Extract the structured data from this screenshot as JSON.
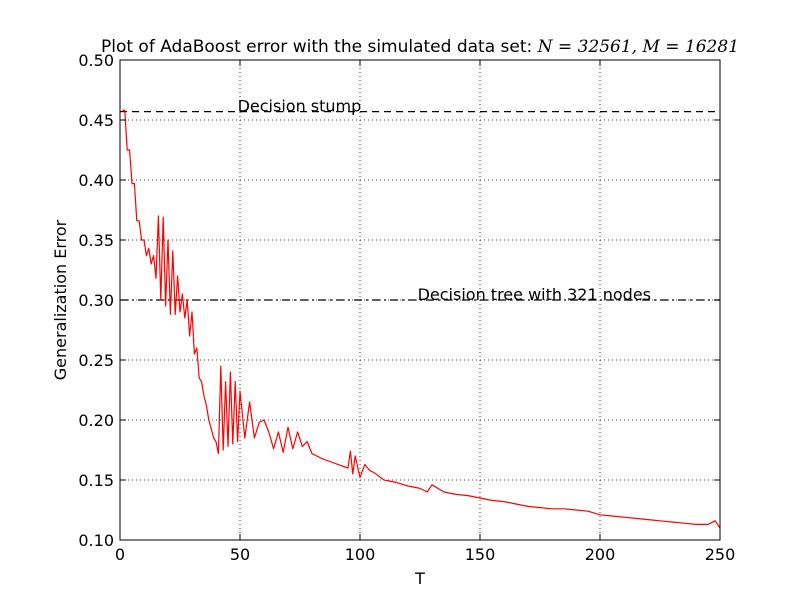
{
  "chart_data": {
    "type": "line",
    "title_prefix": "Plot of AdaBoost error with the simulated data set: ",
    "title_math": "N = 32561, M = 16281",
    "xlabel": "T",
    "ylabel": "Generalization Error",
    "xlim": [
      0,
      250
    ],
    "ylim": [
      0.1,
      0.5
    ],
    "xticks": [
      0,
      50,
      100,
      150,
      200,
      250
    ],
    "xtick_labels": [
      "0",
      "50",
      "100",
      "150",
      "200",
      "250"
    ],
    "yticks": [
      0.1,
      0.15,
      0.2,
      0.25,
      0.3,
      0.35,
      0.4,
      0.45,
      0.5
    ],
    "ytick_labels": [
      "0.10",
      "0.15",
      "0.20",
      "0.25",
      "0.30",
      "0.35",
      "0.40",
      "0.45",
      "0.50"
    ],
    "grid": true,
    "grid_style": "dotted",
    "series": [
      {
        "color": "#ff0000",
        "x": [
          1,
          2,
          3,
          4,
          5,
          6,
          7,
          8,
          9,
          10,
          11,
          12,
          13,
          14,
          15,
          16,
          17,
          18,
          19,
          20,
          21,
          22,
          23,
          24,
          25,
          26,
          27,
          28,
          29,
          30,
          31,
          32,
          33,
          34,
          35,
          36,
          37,
          38,
          39,
          40,
          41,
          42,
          43,
          44,
          45,
          46,
          47,
          48,
          49,
          50,
          52,
          54,
          56,
          58,
          60,
          62,
          64,
          66,
          68,
          70,
          72,
          74,
          76,
          78,
          80,
          84,
          88,
          92,
          95,
          96,
          97,
          98,
          100,
          102,
          104,
          106,
          110,
          115,
          120,
          125,
          128,
          130,
          135,
          140,
          145,
          150,
          155,
          160,
          165,
          170,
          175,
          180,
          185,
          190,
          195,
          200,
          205,
          210,
          215,
          220,
          225,
          230,
          235,
          240,
          245,
          248,
          250
        ],
        "y": [
          0.458,
          0.458,
          0.425,
          0.425,
          0.397,
          0.397,
          0.366,
          0.366,
          0.35,
          0.35,
          0.337,
          0.343,
          0.33,
          0.337,
          0.318,
          0.37,
          0.3,
          0.369,
          0.295,
          0.35,
          0.288,
          0.341,
          0.288,
          0.32,
          0.29,
          0.305,
          0.285,
          0.3,
          0.27,
          0.29,
          0.255,
          0.26,
          0.235,
          0.232,
          0.22,
          0.212,
          0.2,
          0.193,
          0.185,
          0.182,
          0.172,
          0.245,
          0.175,
          0.232,
          0.178,
          0.24,
          0.18,
          0.232,
          0.182,
          0.224,
          0.185,
          0.215,
          0.185,
          0.198,
          0.2,
          0.19,
          0.176,
          0.19,
          0.173,
          0.194,
          0.176,
          0.19,
          0.178,
          0.182,
          0.172,
          0.168,
          0.165,
          0.162,
          0.16,
          0.174,
          0.155,
          0.17,
          0.152,
          0.163,
          0.158,
          0.156,
          0.15,
          0.148,
          0.145,
          0.143,
          0.14,
          0.146,
          0.14,
          0.138,
          0.137,
          0.135,
          0.133,
          0.132,
          0.13,
          0.128,
          0.127,
          0.126,
          0.126,
          0.125,
          0.124,
          0.121,
          0.12,
          0.119,
          0.118,
          0.117,
          0.116,
          0.115,
          0.114,
          0.113,
          0.113,
          0.116,
          0.11
        ]
      }
    ],
    "reference_lines": [
      {
        "label": "Decision stump",
        "y": 0.457,
        "style": "dashed",
        "label_x": 49
      },
      {
        "label": "Decision tree with 321 nodes",
        "y": 0.3,
        "style": "dashdot",
        "label_x": 124
      }
    ]
  }
}
